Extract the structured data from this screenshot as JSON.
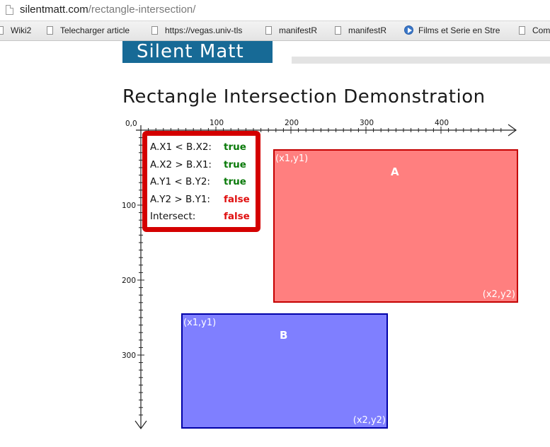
{
  "browser": {
    "url_host": "silentmatt.com",
    "url_path": "/rectangle-intersection/",
    "bookmarks": [
      {
        "label": "Wiki2",
        "icon": "page-icon"
      },
      {
        "label": "Telecharger article",
        "icon": "page-icon"
      },
      {
        "label": "https://vegas.univ-tls",
        "icon": "page-icon"
      },
      {
        "label": "manifestR",
        "icon": "page-icon"
      },
      {
        "label": "manifestR",
        "icon": "page-icon"
      },
      {
        "label": "Films et Serie en Stre",
        "icon": "play-icon"
      },
      {
        "label": "Com",
        "icon": "page-icon"
      }
    ]
  },
  "site": {
    "logo": "Silent Matt",
    "title": "Rectangle Intersection Demonstration"
  },
  "axes": {
    "origin_label": "0,0",
    "x_ticks": [
      "100",
      "200",
      "300",
      "400"
    ],
    "y_ticks": [
      "100",
      "200",
      "300"
    ]
  },
  "info": {
    "rows": [
      {
        "label": "A.X1 < B.X2:",
        "value": "true"
      },
      {
        "label": "A.X2 > B.X1:",
        "value": "true"
      },
      {
        "label": "A.Y1 < B.Y2:",
        "value": "true"
      },
      {
        "label": "A.Y2 > B.Y1:",
        "value": "false"
      },
      {
        "label": "Intersect:",
        "value": "false"
      }
    ]
  },
  "rect_a": {
    "name": "A",
    "top_left_label": "(x1,y1)",
    "bottom_right_label": "(x2,y2)",
    "fill": "#ff7f7f",
    "stroke": "#c40000"
  },
  "rect_b": {
    "name": "B",
    "top_left_label": "(x1,y1)",
    "bottom_right_label": "(x2,y2)",
    "fill": "#7f7fff",
    "stroke": "#0000a8"
  }
}
